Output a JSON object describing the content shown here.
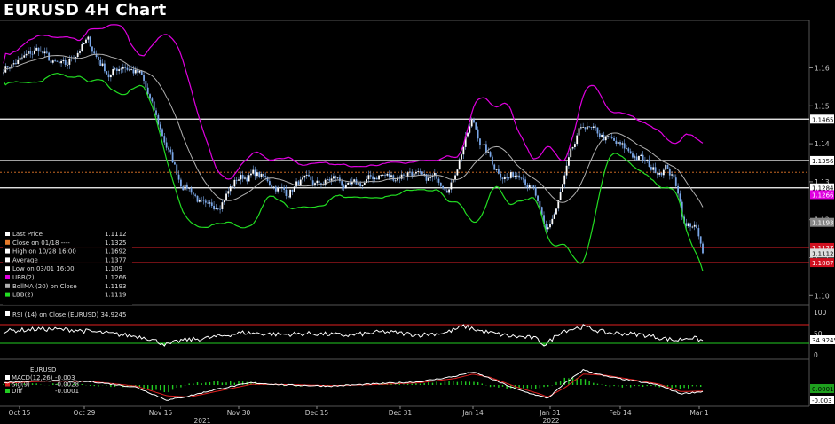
{
  "title": "EURUSD 4H Chart",
  "colors": {
    "candle_up": "#7aa7e8",
    "candle_down": "#7aa7e8",
    "ubb": "#e000e0",
    "lbb": "#22dd22",
    "bollma": "#b0b0b0",
    "resistance": "#ffffff",
    "support": "#e0202a",
    "close_marker": "#e87a2a",
    "rsi": "#ffffff",
    "macd": "#ffffff",
    "signal": "#e02020",
    "diff": "#22cc22"
  },
  "legend": {
    "items": [
      {
        "label": "Last Price",
        "value": "1.1112",
        "color": "#ffffff"
      },
      {
        "label": "Close on 01/18 ----",
        "value": "1.1325",
        "color": "#e87a2a"
      },
      {
        "label": "High on 10/28 16:00",
        "value": "1.1692",
        "color": "#ffffff"
      },
      {
        "label": "Average",
        "value": "1.1377",
        "color": "#ffffff"
      },
      {
        "label": "Low on 03/01 16:00",
        "value": "1.109",
        "color": "#ffffff"
      },
      {
        "label": "UBB(2)",
        "value": "1.1266",
        "color": "#e000e0"
      },
      {
        "label": "BollMA (20) on Close",
        "value": "1.1193",
        "color": "#b0b0b0"
      },
      {
        "label": "LBB(2)",
        "value": "1.1119",
        "color": "#22dd22"
      }
    ]
  },
  "price_axis": {
    "ticks": [
      "1.16",
      "1.15",
      "1.14",
      "1.13",
      "1.12",
      "1.11",
      "1.10"
    ],
    "badges": [
      {
        "value": "1.1465",
        "bg": "#ffffff",
        "fg": "#000000"
      },
      {
        "value": "1.1356",
        "bg": "#ffffff",
        "fg": "#000000"
      },
      {
        "value": "1.1284",
        "bg": "#ffffff",
        "fg": "#000000"
      },
      {
        "value": "1.1266",
        "bg": "#e000e0",
        "fg": "#ffffff"
      },
      {
        "value": "1.1193",
        "bg": "#888888",
        "fg": "#ffffff"
      },
      {
        "value": "1.1127",
        "bg": "#d01020",
        "fg": "#ffffff"
      },
      {
        "value": "1.1112",
        "bg": "#dddddd",
        "fg": "#000000"
      },
      {
        "value": "1.1087",
        "bg": "#d01020",
        "fg": "#ffffff"
      }
    ]
  },
  "rsi_panel": {
    "legend": "RSI (14)   on Close (EURUSD) 34.9245",
    "ticks": [
      "100",
      "50",
      "0"
    ],
    "badge": "34.9245"
  },
  "macd_panel": {
    "header": "EURUSD",
    "legend": [
      {
        "label": "MACD(12,26)",
        "value": "-0.003",
        "color": "#ffffff"
      },
      {
        "label": "Sig(9)",
        "value": "-0.0028",
        "color": "#e02020"
      },
      {
        "label": "Diff",
        "value": "-0.0001",
        "color": "#22cc22"
      }
    ],
    "badges": [
      {
        "value": "0.0001",
        "bg": "#1ea01e",
        "fg": "#000000"
      },
      {
        "value": "-0.003",
        "bg": "#ffffff",
        "fg": "#000000"
      }
    ]
  },
  "x_axis": {
    "labels": [
      "Oct 15",
      "Oct 29",
      "Nov 15",
      "Nov 30",
      "Dec 15",
      "Dec 31",
      "Jan 14",
      "Jan 31",
      "Feb 14",
      "Mar 1"
    ],
    "years": [
      "2021",
      "2022"
    ]
  },
  "chart_data": {
    "type": "line",
    "title": "EURUSD 4H Chart",
    "dates": [
      "Oct 15",
      "Oct 29",
      "Nov 15",
      "Nov 30",
      "Dec 15",
      "Dec 31",
      "Jan 14",
      "Jan 31",
      "Feb 14",
      "Mar 1"
    ],
    "price_anchors": {
      "x": [
        0,
        20,
        40,
        55,
        70,
        85,
        95,
        105,
        120,
        135,
        155,
        175,
        190,
        200,
        212,
        230,
        245,
        265,
        285,
        300,
        320,
        335,
        355,
        375,
        390,
        410,
        425,
        440,
        460,
        475,
        490,
        505,
        520,
        530,
        540,
        555,
        570,
        585,
        600,
        612,
        625,
        640,
        655,
        665,
        675,
        690,
        705,
        720,
        735,
        750,
        762,
        770,
        780,
        790
      ],
      "y": [
        1.16,
        1.162,
        1.165,
        1.161,
        1.16,
        1.165,
        1.167,
        1.163,
        1.158,
        1.161,
        1.158,
        1.145,
        1.136,
        1.13,
        1.128,
        1.122,
        1.125,
        1.131,
        1.132,
        1.13,
        1.127,
        1.13,
        1.129,
        1.131,
        1.128,
        1.13,
        1.132,
        1.131,
        1.133,
        1.13,
        1.131,
        1.129,
        1.14,
        1.146,
        1.14,
        1.134,
        1.131,
        1.133,
        1.127,
        1.116,
        1.123,
        1.136,
        1.145,
        1.143,
        1.142,
        1.14,
        1.138,
        1.136,
        1.133,
        1.134,
        1.128,
        1.118,
        1.119,
        1.1112
      ]
    },
    "series": [
      {
        "name": "UBB(2)"
      },
      {
        "name": "BollMA (20) on Close"
      },
      {
        "name": "LBB(2)"
      }
    ],
    "horizontal_lines": [
      1.1465,
      1.1356,
      1.1325,
      1.1284,
      1.1127,
      1.1087
    ],
    "ylim": [
      1.0975,
      1.1725
    ],
    "rsi": {
      "ylim": [
        0,
        100
      ],
      "x": [
        0,
        40,
        80,
        120,
        160,
        185,
        200,
        230,
        270,
        310,
        350,
        390,
        430,
        470,
        500,
        520,
        540,
        570,
        600,
        612,
        630,
        655,
        680,
        720,
        760,
        775,
        790
      ],
      "y": [
        55,
        60,
        58,
        50,
        42,
        25,
        35,
        40,
        52,
        48,
        50,
        46,
        54,
        47,
        52,
        66,
        55,
        45,
        40,
        25,
        55,
        65,
        52,
        48,
        35,
        42,
        34.9
      ]
    },
    "macd": {
      "x": [
        0,
        50,
        100,
        150,
        185,
        210,
        240,
        280,
        320,
        370,
        420,
        470,
        510,
        530,
        550,
        580,
        605,
        615,
        635,
        655,
        680,
        710,
        740,
        765,
        790
      ],
      "macd": [
        0.001,
        0.002,
        0.0015,
        -0.001,
        -0.007,
        -0.005,
        -0.002,
        0.001,
        0,
        -0.0005,
        0.0005,
        0.0015,
        0.004,
        0.006,
        0.003,
        -0.002,
        -0.005,
        -0.006,
        0.001,
        0.007,
        0.004,
        0.002,
        0,
        -0.004,
        -0.003
      ],
      "signal": [
        0.0008,
        0.0018,
        0.0016,
        -0.0005,
        -0.005,
        -0.0055,
        -0.003,
        0.0003,
        0.0002,
        -0.0003,
        0.0002,
        0.001,
        0.003,
        0.005,
        0.0035,
        -0.001,
        -0.004,
        -0.0055,
        -0.001,
        0.005,
        0.0045,
        0.0025,
        0.0005,
        -0.003,
        -0.0028
      ],
      "ylim": [
        -0.009,
        0.009
      ]
    }
  }
}
